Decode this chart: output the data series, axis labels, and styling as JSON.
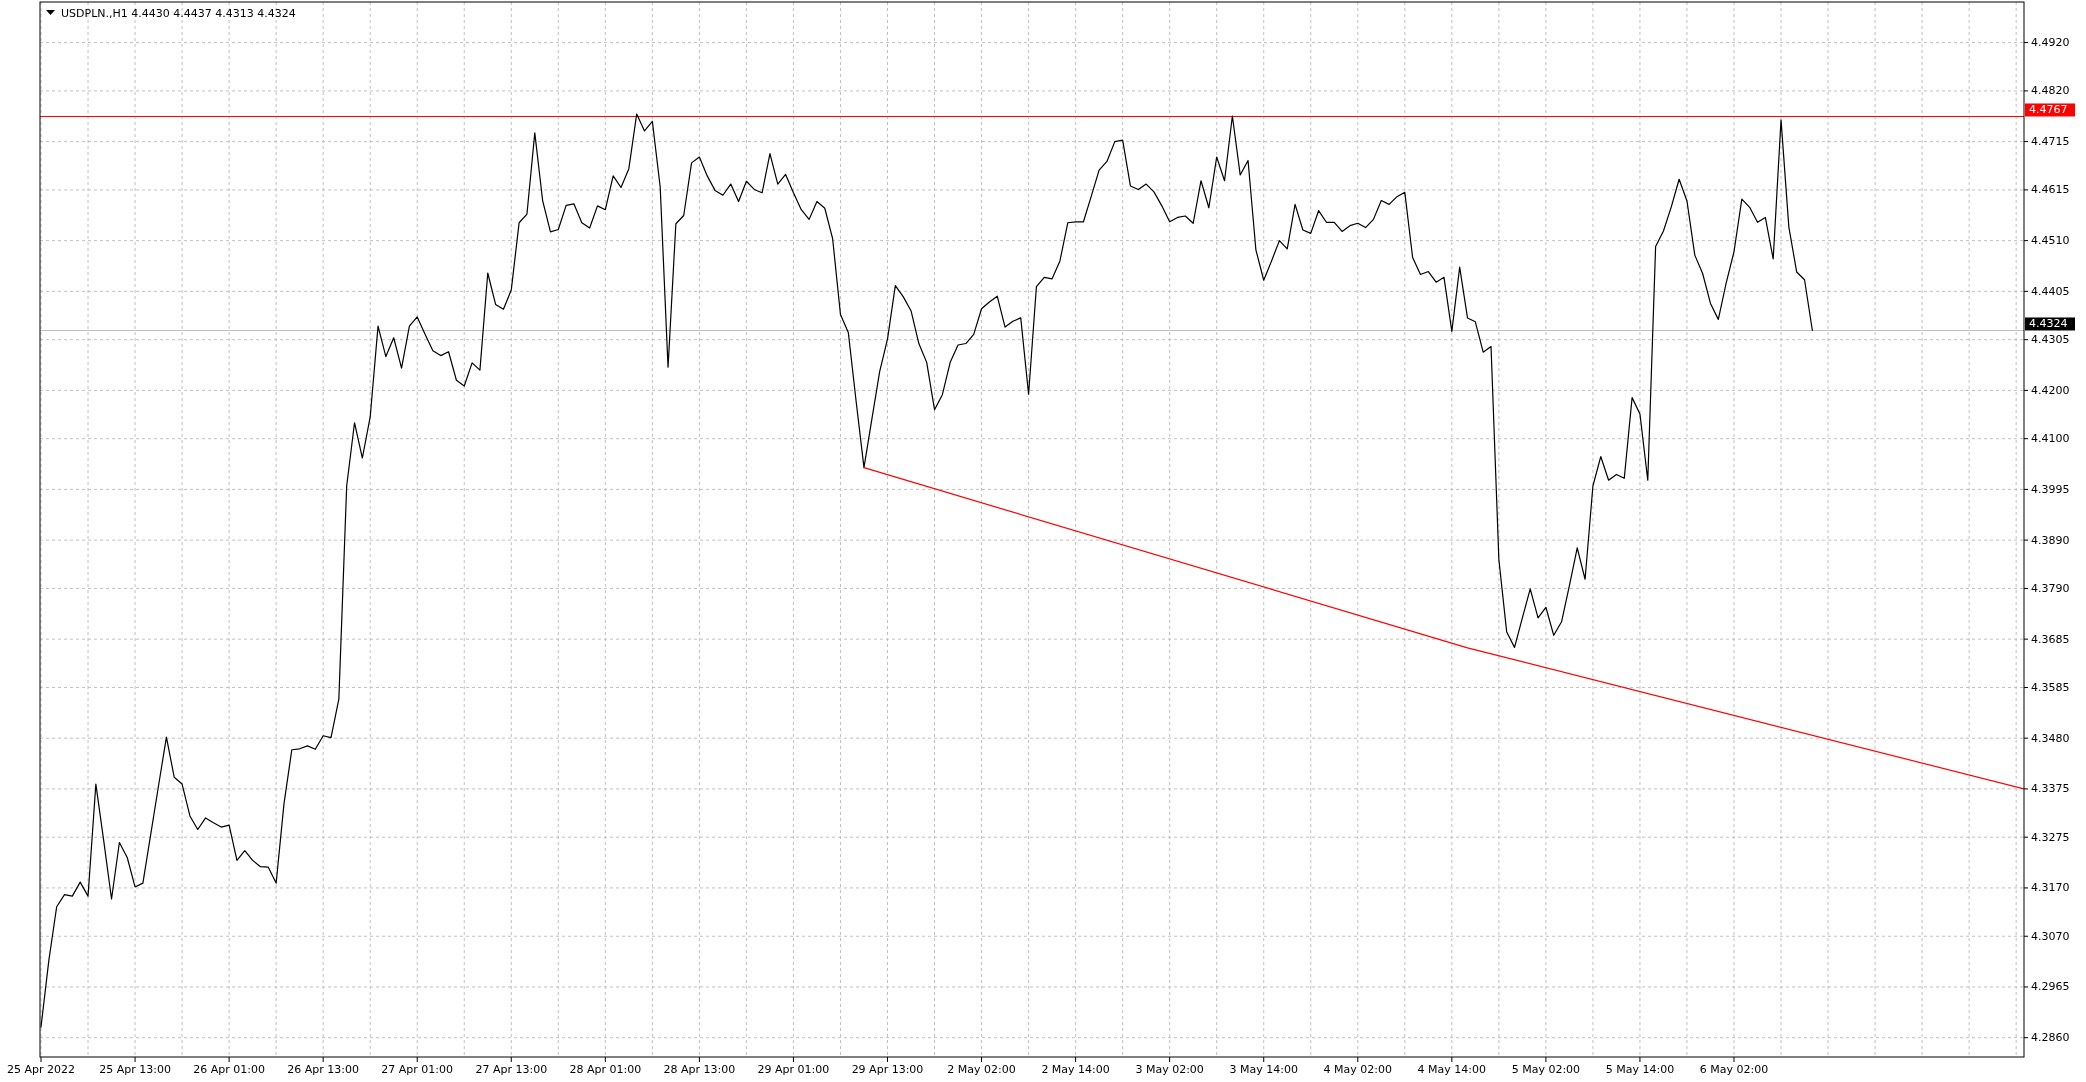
{
  "chart_data": {
    "type": "line",
    "title": "USDPLN.,H1 4.4430 4.4437 4.4313 4.4324",
    "categories": [
      "25 Apr 2022",
      null,
      null,
      null,
      null,
      null,
      null,
      null,
      null,
      null,
      null,
      null,
      "25 Apr 13:00",
      null,
      null,
      null,
      null,
      null,
      null,
      null,
      null,
      null,
      null,
      null,
      "26 Apr 01:00",
      null,
      null,
      null,
      null,
      null,
      null,
      null,
      null,
      null,
      null,
      null,
      "26 Apr 13:00",
      null,
      null,
      null,
      null,
      null,
      null,
      null,
      null,
      null,
      null,
      null,
      "27 Apr 01:00",
      null,
      null,
      null,
      null,
      null,
      null,
      null,
      null,
      null,
      null,
      null,
      "27 Apr 13:00",
      null,
      null,
      null,
      null,
      null,
      null,
      null,
      null,
      null,
      null,
      null,
      "28 Apr 01:00",
      null,
      null,
      null,
      null,
      null,
      null,
      null,
      null,
      null,
      null,
      null,
      "28 Apr 13:00",
      null,
      null,
      null,
      null,
      null,
      null,
      null,
      null,
      null,
      null,
      null,
      "29 Apr 01:00",
      null,
      null,
      null,
      null,
      null,
      null,
      null,
      null,
      null,
      null,
      null,
      "29 Apr 13:00",
      null,
      null,
      null,
      null,
      null,
      null,
      null,
      null,
      null,
      null,
      null,
      "2 May 02:00",
      null,
      null,
      null,
      null,
      null,
      null,
      null,
      null,
      null,
      null,
      null,
      "2 May 14:00",
      null,
      null,
      null,
      null,
      null,
      null,
      null,
      null,
      null,
      null,
      null,
      "3 May 02:00",
      null,
      null,
      null,
      null,
      null,
      null,
      null,
      null,
      null,
      null,
      null,
      "3 May 14:00",
      null,
      null,
      null,
      null,
      null,
      null,
      null,
      null,
      null,
      null,
      null,
      "4 May 02:00",
      null,
      null,
      null,
      null,
      null,
      null,
      null,
      null,
      null,
      null,
      null,
      "4 May 14:00",
      null,
      null,
      null,
      null,
      null,
      null,
      null,
      null,
      null,
      null,
      null,
      "5 May 02:00",
      null,
      null,
      null,
      null,
      null,
      null,
      null,
      null,
      null,
      null,
      null,
      "5 May 14:00",
      null,
      null,
      null,
      null,
      null,
      null,
      null,
      null,
      null,
      null,
      null,
      "6 May 02:00",
      null,
      null,
      null,
      null,
      null,
      null,
      null,
      null,
      null,
      null,
      null,
      null,
      null,
      null,
      null,
      null,
      null,
      null,
      null,
      null,
      null,
      null,
      null,
      null,
      null,
      null,
      null,
      null,
      null,
      null,
      null,
      null,
      null,
      null,
      null,
      null,
      null
    ],
    "series": [
      {
        "color": "#000000",
        "values": [
          4.2882,
          4.302,
          4.3131,
          4.3156,
          4.3153,
          4.3182,
          4.3153,
          4.3385,
          4.3268,
          4.3147,
          4.3264,
          4.3233,
          4.3172,
          4.318,
          4.3281,
          4.3382,
          4.3482,
          4.3399,
          4.3385,
          4.3319,
          4.3291,
          4.3315,
          4.3305,
          4.3296,
          4.33,
          4.3227,
          4.3247,
          4.3227,
          4.3214,
          4.3213,
          4.318,
          4.3344,
          4.3456,
          4.3458,
          4.3464,
          4.3457,
          4.3485,
          4.3481,
          4.3561,
          4.4002,
          4.4133,
          4.406,
          4.4145,
          4.4333,
          4.427,
          4.4309,
          4.4246,
          4.4333,
          4.4352,
          4.4316,
          4.4282,
          4.4272,
          4.428,
          4.4221,
          4.4209,
          4.4257,
          4.4242,
          4.4443,
          4.4378,
          4.4368,
          4.4408,
          4.4547,
          4.4565,
          4.4733,
          4.4593,
          4.4528,
          4.4533,
          4.4583,
          4.4586,
          4.4547,
          4.4536,
          4.4582,
          4.4574,
          4.4644,
          4.462,
          4.4659,
          4.4772,
          4.4737,
          4.4757,
          4.4621,
          4.4248,
          4.4545,
          4.4562,
          4.4671,
          4.4683,
          4.4644,
          4.4614,
          4.4604,
          4.4627,
          4.4591,
          4.4633,
          4.4616,
          4.4609,
          4.469,
          4.4627,
          4.4647,
          4.4609,
          4.4574,
          4.4554,
          4.4591,
          4.4577,
          4.4514,
          4.4357,
          4.432,
          4.4177,
          4.404,
          4.414,
          4.4239,
          4.4306,
          4.4417,
          4.4394,
          4.4365,
          4.4297,
          4.4258,
          4.416,
          4.4191,
          4.4258,
          4.4294,
          4.4297,
          4.4316,
          4.4369,
          4.4383,
          4.4395,
          4.4331,
          4.4343,
          4.435,
          4.4192,
          4.4415,
          4.4434,
          4.4431,
          4.4468,
          4.4547,
          4.4549,
          4.4549,
          4.4602,
          4.4656,
          4.4674,
          4.4715,
          4.4718,
          4.4623,
          4.4616,
          4.4627,
          4.4611,
          4.4582,
          4.4549,
          4.4558,
          4.4561,
          4.4546,
          4.4634,
          4.4578,
          4.4683,
          4.4634,
          4.4768,
          4.4646,
          4.4676,
          4.4491,
          4.4428,
          4.4468,
          4.451,
          4.4493,
          4.4585,
          4.4532,
          4.4525,
          4.4572,
          4.4548,
          4.4548,
          4.4529,
          4.4541,
          4.4546,
          4.4537,
          4.4554,
          4.4593,
          4.4585,
          4.4601,
          4.461,
          4.4475,
          4.444,
          4.4446,
          4.4424,
          4.4434,
          4.4322,
          4.4455,
          4.435,
          4.4342,
          4.4279,
          4.4291,
          4.385,
          4.37,
          4.3668,
          4.3729,
          4.3789,
          4.3729,
          4.3751,
          4.3693,
          4.3721,
          4.3796,
          4.3874,
          4.3809,
          4.4002,
          4.4063,
          4.4014,
          4.4026,
          4.4018,
          4.4185,
          4.4151,
          4.4014,
          4.4498,
          4.453,
          4.458,
          4.4637,
          4.4592,
          4.448,
          4.4442,
          4.438,
          4.4347,
          4.4422,
          4.4487,
          4.4596,
          4.4579,
          4.4548,
          4.4558,
          4.4472,
          4.476,
          4.4538,
          4.4445,
          4.4429,
          4.4324,
          null,
          null,
          null,
          null,
          null,
          null,
          null,
          null,
          null,
          null,
          null,
          null,
          null,
          null,
          null,
          null,
          null,
          null,
          null,
          null,
          null,
          null,
          null,
          null,
          null,
          null,
          null
        ]
      },
      {
        "type": "line",
        "color": "#ff0000",
        "values": [
          null,
          null,
          null,
          null,
          null,
          null,
          null,
          null,
          null,
          null,
          null,
          null,
          null,
          null,
          null,
          null,
          null,
          null,
          null,
          null,
          null,
          null,
          null,
          null,
          null,
          null,
          null,
          null,
          null,
          null,
          null,
          null,
          null,
          null,
          null,
          null,
          null,
          null,
          null,
          null,
          null,
          null,
          null,
          null,
          null,
          null,
          null,
          null,
          null,
          null,
          null,
          null,
          null,
          null,
          null,
          null,
          null,
          null,
          null,
          null,
          null,
          null,
          null,
          null,
          null,
          null,
          null,
          null,
          null,
          null,
          null,
          null,
          null,
          null,
          null,
          null,
          null,
          null,
          null,
          null,
          null,
          null,
          null,
          null,
          null,
          null,
          null,
          null,
          null,
          null,
          null,
          null,
          null,
          null,
          null,
          null,
          null,
          null,
          null,
          null,
          null,
          null,
          null,
          null,
          null,
          4.404,
          null,
          null,
          null,
          null,
          null,
          null,
          null,
          null,
          null,
          null,
          null,
          null,
          null,
          null,
          null,
          null,
          null,
          null,
          null,
          null,
          null,
          null,
          null,
          null,
          null,
          null,
          null,
          null,
          null,
          null,
          null,
          null,
          null,
          null,
          null,
          null,
          null,
          null,
          null,
          null,
          null,
          null,
          null,
          null,
          null,
          null,
          null,
          null,
          null,
          null,
          null,
          null,
          null,
          null,
          null,
          null,
          null,
          null,
          null,
          null,
          null,
          null,
          null,
          null,
          null,
          null,
          null,
          null,
          null,
          null,
          null,
          null,
          null,
          null,
          null,
          null,
          4.3667,
          null,
          null,
          null,
          null,
          null,
          null,
          null,
          null,
          null,
          null,
          null,
          null,
          null,
          null,
          null,
          null,
          null,
          null,
          null,
          null,
          null,
          null,
          null,
          null,
          null,
          null,
          null,
          null,
          null,
          null,
          null,
          null,
          null,
          null,
          null,
          null,
          null,
          null,
          null,
          null,
          null,
          null,
          null,
          null,
          null,
          null,
          null,
          null,
          null,
          null,
          null,
          null,
          null,
          null,
          null,
          null,
          null,
          null,
          null,
          null,
          null,
          null,
          null,
          null,
          null,
          null,
          null,
          null,
          null,
          null,
          4.3375
        ]
      }
    ],
    "ylim": [
      4.282,
      4.5004
    ],
    "yticks": [
      {
        "value": 4.286,
        "label": "4.2860"
      },
      4.2965,
      {
        "value": 4.307,
        "label": "4.3070"
      },
      {
        "value": 4.317,
        "label": "4.3170"
      },
      4.3275,
      4.3375,
      {
        "value": 4.348,
        "label": "4.3480"
      },
      4.3585,
      4.3685,
      {
        "value": 4.379,
        "label": "4.3790"
      },
      {
        "value": 4.389,
        "label": "4.3890"
      },
      4.3995,
      {
        "value": 4.41,
        "label": "4.4100"
      },
      {
        "value": 4.42,
        "label": "4.4200"
      },
      4.4305,
      4.4405,
      {
        "value": 4.451,
        "label": "4.4510"
      },
      4.4615,
      4.4715,
      {
        "value": 4.482,
        "label": "4.4820"
      },
      {
        "value": 4.492,
        "label": "4.4920"
      }
    ],
    "grid": true,
    "ref_lines": [
      {
        "axis": "y",
        "value": 4.4767,
        "label": "4.4767",
        "color": "#ff0000"
      },
      {
        "axis": "y",
        "value": 4.4324,
        "label": "4.4324",
        "color": "#c0c0c0"
      }
    ]
  }
}
